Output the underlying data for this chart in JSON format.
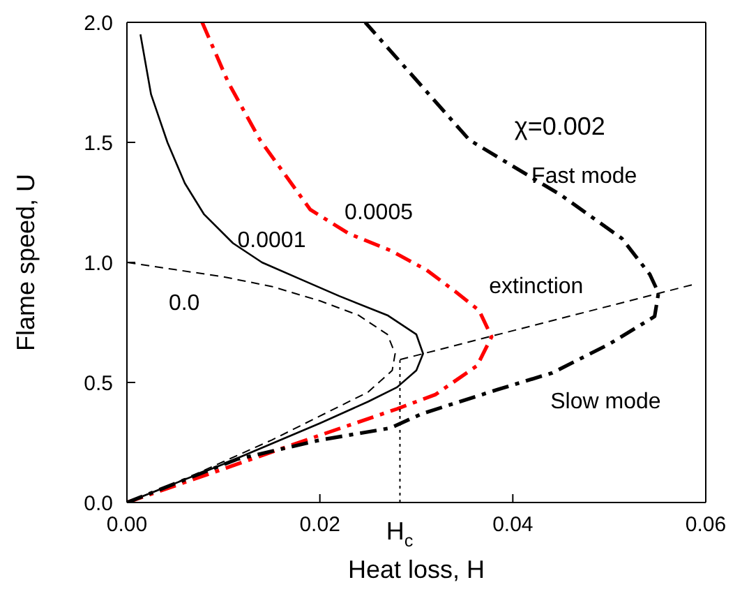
{
  "chart_data": {
    "type": "line",
    "xlabel": "Heat loss, H",
    "ylabel": "Flame speed, U",
    "xlim": [
      0,
      0.06
    ],
    "ylim": [
      0,
      2.0
    ],
    "xticks": [
      {
        "value": 0,
        "label": "0.00"
      },
      {
        "value": 0.02,
        "label": "0.02"
      },
      {
        "value": 0.04,
        "label": "0.04"
      },
      {
        "value": 0.06,
        "label": "0.06"
      }
    ],
    "yticks": [
      {
        "value": 0,
        "label": "0.0"
      },
      {
        "value": 0.5,
        "label": "0.5"
      },
      {
        "value": 1.0,
        "label": "1.0"
      },
      {
        "value": 1.5,
        "label": "1.5"
      },
      {
        "value": 2.0,
        "label": "2.0"
      }
    ],
    "legend": false,
    "marker": "none",
    "series": [
      {
        "name": "0.0",
        "color": "#000000",
        "line_style": "dashed",
        "x": [
          0,
          0.005,
          0.01,
          0.015,
          0.02,
          0.025,
          0.0275,
          0.0278,
          0.027,
          0.024,
          0.02,
          0.015,
          0.01,
          0.005,
          0
        ],
        "values": [
          0,
          0.08,
          0.17,
          0.26,
          0.36,
          0.46,
          0.55,
          0.62,
          0.7,
          0.78,
          0.84,
          0.9,
          0.94,
          0.97,
          1.0
        ]
      },
      {
        "name": "0.0001",
        "color": "#000000",
        "line_style": "solid",
        "x": [
          0,
          0.01,
          0.02,
          0.025,
          0.028,
          0.03,
          0.0307,
          0.03,
          0.027,
          0.022,
          0.018,
          0.014,
          0.011,
          0.008,
          0.006,
          0.0042,
          0.0025,
          0.0014
        ],
        "values": [
          0,
          0.16,
          0.33,
          0.42,
          0.48,
          0.55,
          0.62,
          0.7,
          0.78,
          0.86,
          0.93,
          1.0,
          1.08,
          1.2,
          1.33,
          1.5,
          1.7,
          1.95
        ]
      },
      {
        "name": "0.0005",
        "color": "#ff0000",
        "line_style": "dashdot",
        "x": [
          0,
          0.01,
          0.02,
          0.028,
          0.032,
          0.0363,
          0.0378,
          0.0365,
          0.034,
          0.031,
          0.0273,
          0.023,
          0.019,
          0.0138,
          0.0105,
          0.0078
        ],
        "values": [
          0,
          0.14,
          0.28,
          0.39,
          0.45,
          0.57,
          0.69,
          0.8,
          0.88,
          0.97,
          1.05,
          1.12,
          1.22,
          1.51,
          1.75,
          2.0
        ]
      },
      {
        "name": "χ=0.002",
        "color": "#000000",
        "line_style": "dashdot",
        "x": [
          0,
          0.0114,
          0.02,
          0.0273,
          0.0306,
          0.0384,
          0.0441,
          0.05,
          0.0547,
          0.0551,
          0.0542,
          0.0513,
          0.045,
          0.0355,
          0.0247
        ],
        "values": [
          0,
          0.18,
          0.26,
          0.31,
          0.37,
          0.47,
          0.54,
          0.66,
          0.775,
          0.873,
          0.95,
          1.1,
          1.28,
          1.51,
          2.0
        ]
      },
      {
        "color": "#000000",
        "line_style": "dashed",
        "x": [
          0.0283,
          0.0586
        ],
        "values": [
          0.595,
          0.907
        ]
      },
      {
        "color": "#000000",
        "line_style": "dotted",
        "x": [
          0.0283,
          0.0283
        ],
        "values": [
          0,
          0.595
        ]
      }
    ],
    "annotations": [
      "Fast mode",
      "extinction",
      "Slow mode",
      "H$_{c}$"
    ]
  }
}
